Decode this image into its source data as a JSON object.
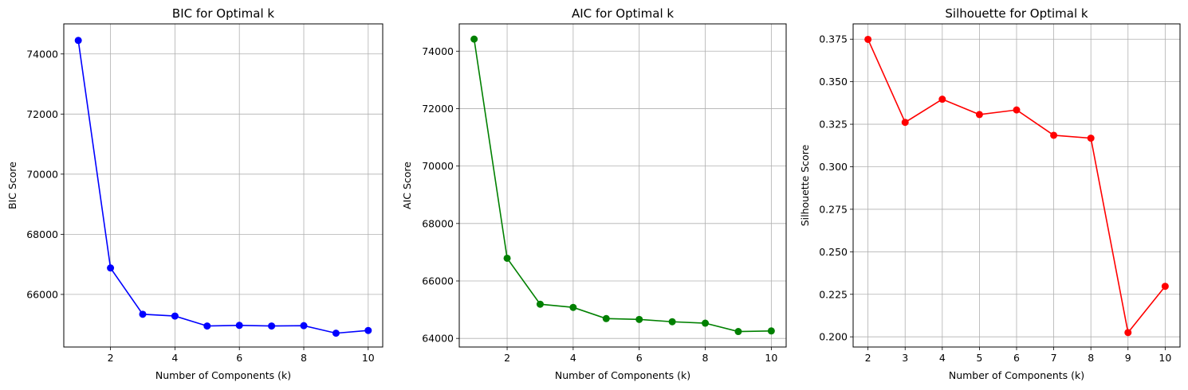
{
  "chart_data": [
    {
      "type": "line",
      "title": "BIC for Optimal k",
      "xlabel": "Number of Components (k)",
      "ylabel": "BIC Score",
      "x": [
        1,
        2,
        3,
        4,
        5,
        6,
        7,
        8,
        9,
        10
      ],
      "xticks": [
        2,
        4,
        6,
        8,
        10
      ],
      "xlim": [
        0.55,
        10.45
      ],
      "ylim": [
        64250,
        75000
      ],
      "yticks": [
        66000,
        68000,
        70000,
        72000,
        74000
      ],
      "grid": true,
      "color": "#0000ff",
      "series": [
        {
          "values": [
            74450,
            66880,
            65340,
            65280,
            64950,
            64970,
            64950,
            64960,
            64710,
            64800
          ]
        }
      ]
    },
    {
      "type": "line",
      "title": "AIC for Optimal k",
      "xlabel": "Number of Components (k)",
      "ylabel": "AIC Score",
      "x": [
        1,
        2,
        3,
        4,
        5,
        6,
        7,
        8,
        9,
        10
      ],
      "xticks": [
        2,
        4,
        6,
        8,
        10
      ],
      "xlim": [
        0.55,
        10.45
      ],
      "ylim": [
        63700,
        74950
      ],
      "yticks": [
        64000,
        66000,
        68000,
        70000,
        72000,
        74000
      ],
      "grid": true,
      "color": "#008000",
      "series": [
        {
          "values": [
            74420,
            66790,
            65190,
            65080,
            64690,
            64660,
            64580,
            64530,
            64240,
            64260
          ]
        }
      ]
    },
    {
      "type": "line",
      "title": "Silhouette for Optimal k",
      "xlabel": "Number of Components (k)",
      "ylabel": "Silhouette Score",
      "x": [
        2,
        3,
        4,
        5,
        6,
        7,
        8,
        9,
        10
      ],
      "xticks": [
        2,
        3,
        4,
        5,
        6,
        7,
        8,
        9,
        10
      ],
      "xlim": [
        1.6,
        10.4
      ],
      "ylim": [
        0.194,
        0.384
      ],
      "yticks": [
        0.2,
        0.225,
        0.25,
        0.275,
        0.3,
        0.325,
        0.35,
        0.375
      ],
      "ytick_decimals": 3,
      "grid": true,
      "color": "#ff0000",
      "series": [
        {
          "values": [
            0.3749,
            0.3261,
            0.3397,
            0.3307,
            0.3334,
            0.3185,
            0.3168,
            0.2025,
            0.2297
          ]
        }
      ]
    }
  ]
}
